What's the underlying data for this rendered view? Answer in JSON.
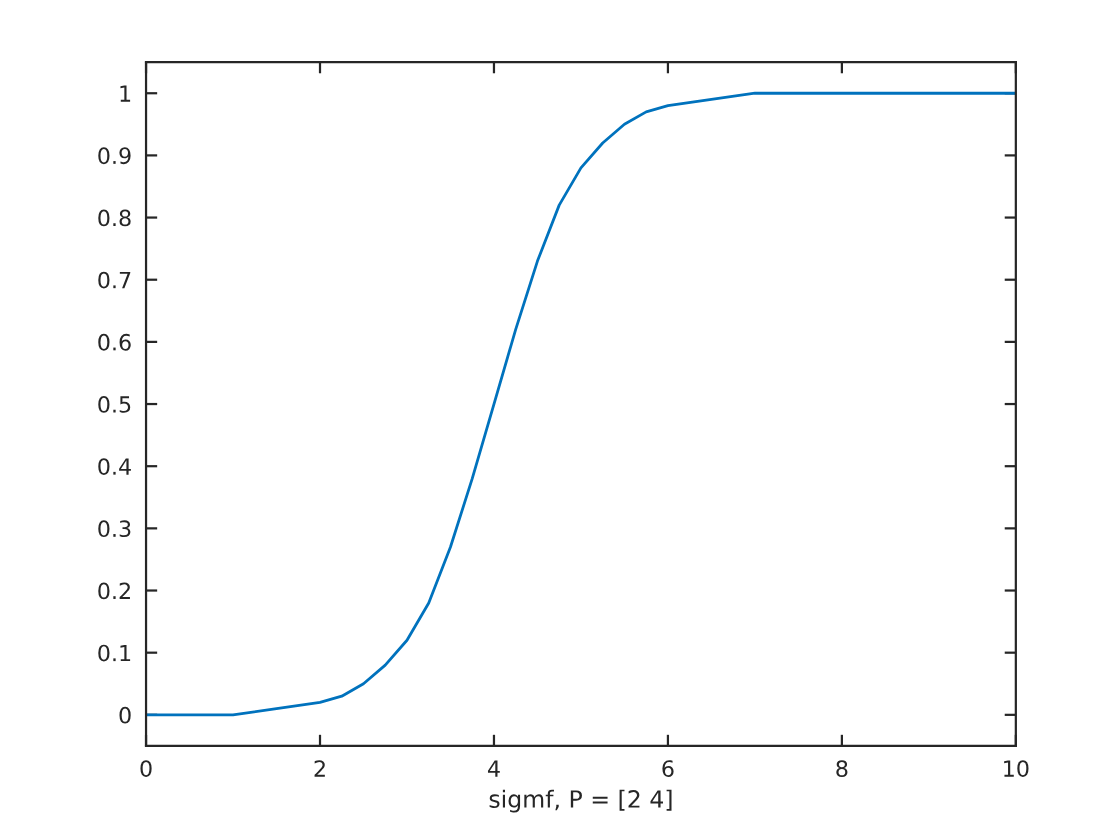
{
  "chart_data": {
    "type": "line",
    "xlabel": "sigmf, P = [2 4]",
    "x": [
      0,
      0.5,
      1,
      1.5,
      2,
      2.25,
      2.5,
      2.75,
      3,
      3.25,
      3.5,
      3.75,
      4,
      4.25,
      4.5,
      4.75,
      5,
      5.25,
      5.5,
      5.75,
      6,
      6.5,
      7,
      8,
      9,
      10
    ],
    "values": [
      0.0,
      0.0,
      0.0,
      0.01,
      0.02,
      0.03,
      0.05,
      0.08,
      0.12,
      0.18,
      0.27,
      0.38,
      0.5,
      0.62,
      0.73,
      0.82,
      0.88,
      0.92,
      0.95,
      0.97,
      0.98,
      0.99,
      1.0,
      1.0,
      1.0,
      1.0
    ],
    "color": "#0072bd",
    "xlim": [
      0,
      10
    ],
    "xticks": [
      0,
      2,
      4,
      6,
      8,
      10
    ],
    "ylim": [
      -0.05,
      1.05
    ],
    "yticks": [
      0,
      0.1,
      0.2,
      0.3,
      0.4,
      0.5,
      0.6,
      0.7,
      0.8,
      0.9,
      1
    ]
  }
}
